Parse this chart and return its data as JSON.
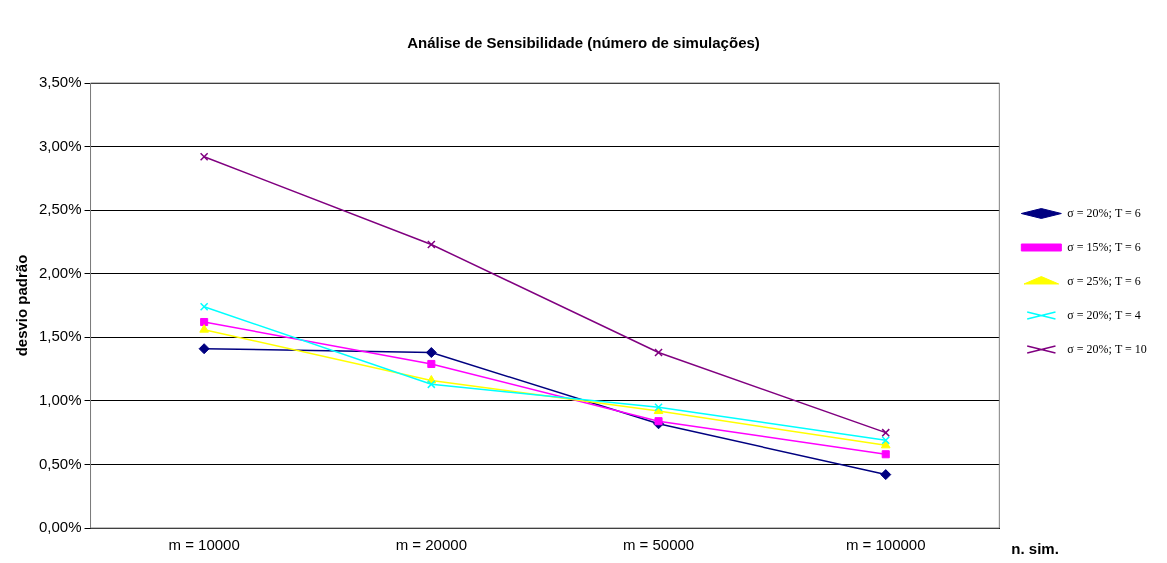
{
  "chart_data": {
    "type": "line",
    "title": "Análise de Sensibilidade (número de simulações)",
    "xlabel": "n. sim.",
    "ylabel": "desvio padrão",
    "categories": [
      "m = 10000",
      "m = 20000",
      "m = 50000",
      "m = 100000"
    ],
    "series": [
      {
        "name": "σ = 20%; T = 6",
        "color": "#000080",
        "marker": "diamond",
        "values": [
          1.41,
          1.38,
          0.82,
          0.42
        ]
      },
      {
        "name": "σ = 15%; T = 6",
        "color": "#ff00ff",
        "marker": "square",
        "values": [
          1.62,
          1.29,
          0.84,
          0.58
        ]
      },
      {
        "name": "σ = 25%; T = 6",
        "color": "#ffff00",
        "marker": "triangle",
        "values": [
          1.56,
          1.16,
          0.92,
          0.65
        ]
      },
      {
        "name": "σ = 20%; T = 4",
        "color": "#00ffff",
        "marker": "cross",
        "values": [
          1.74,
          1.13,
          0.95,
          0.69
        ]
      },
      {
        "name": "σ = 20%; T = 10",
        "color": "#800080",
        "marker": "cross",
        "values": [
          2.92,
          2.23,
          1.38,
          0.75
        ]
      }
    ],
    "ylim": [
      0,
      3.5
    ],
    "yticks": [
      {
        "value": 0,
        "label": "0,00%"
      },
      {
        "value": 0.5,
        "label": "0,50%"
      },
      {
        "value": 1,
        "label": "1,00%"
      },
      {
        "value": 1.5,
        "label": "1,50%"
      },
      {
        "value": 2,
        "label": "2,00%"
      },
      {
        "value": 2.5,
        "label": "2,50%"
      },
      {
        "value": 3,
        "label": "3,00%"
      },
      {
        "value": 3.5,
        "label": "3,50%"
      }
    ],
    "grid": "y",
    "legend": "right",
    "line_style": "solid"
  }
}
